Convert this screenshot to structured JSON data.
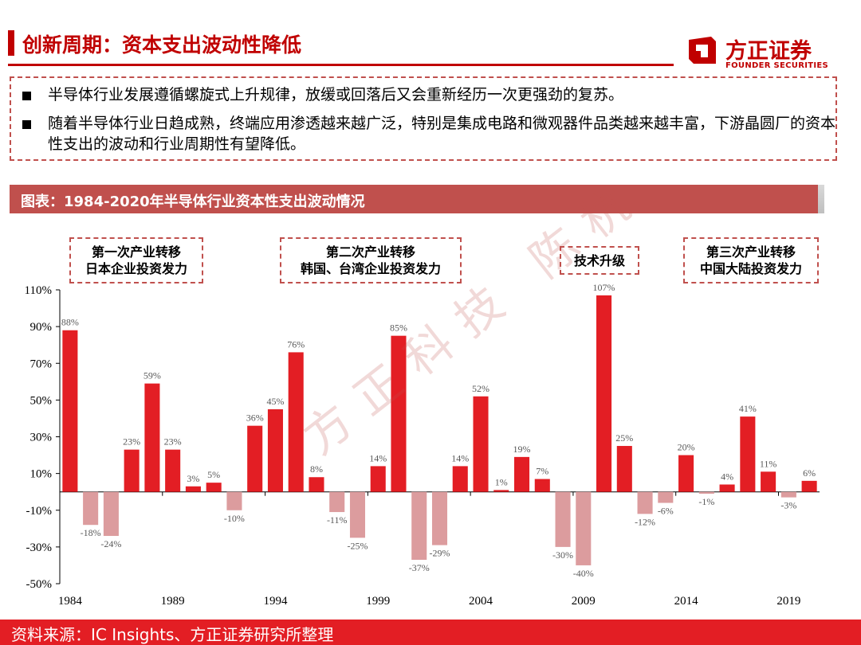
{
  "header": {
    "title": "创新周期：资本支出波动性降低",
    "logo_cn": "方正证券",
    "logo_en": "FOUNDER SECURITIES"
  },
  "summary": {
    "bullets": [
      "半导体行业发展遵循螺旋式上升规律，放缓或回落后又会重新经历一次更强劲的复苏。",
      "随着半导体行业日趋成熟，终端应用渗透越来越广泛，特别是集成电路和微观器件品类越来越丰富，下游晶圆厂的资本性支出的波动和行业周期性有望降低。"
    ]
  },
  "chart_banner": "图表：1984-2020年半导体行业资本性支出波动情况",
  "callouts": [
    {
      "line1": "第一次产业转移",
      "line2": "日本企业投资发力"
    },
    {
      "line1": "第二次产业转移",
      "line2": "韩国、台湾企业投资发力"
    },
    {
      "line1": "技术升级",
      "line2": ""
    },
    {
      "line1": "第三次产业转移",
      "line2": "中国大陆投资发力"
    }
  ],
  "watermark": "方正科技 陈杭",
  "colors": {
    "positive": "#e31e24",
    "negative": "#dc9c9e",
    "accent": "#c00000"
  },
  "chart_data": {
    "type": "bar",
    "x": [
      1984,
      1985,
      1986,
      1987,
      1988,
      1989,
      1990,
      1991,
      1992,
      1993,
      1994,
      1995,
      1996,
      1997,
      1998,
      1999,
      2000,
      2001,
      2002,
      2003,
      2004,
      2005,
      2006,
      2007,
      2008,
      2009,
      2010,
      2011,
      2012,
      2013,
      2014,
      2015,
      2016,
      2017,
      2018,
      2019,
      2020
    ],
    "values": [
      88,
      -18,
      -24,
      23,
      59,
      23,
      3,
      5,
      -10,
      36,
      45,
      76,
      8,
      -11,
      -25,
      14,
      85,
      -37,
      -29,
      14,
      52,
      1,
      19,
      7,
      -30,
      -40,
      107,
      25,
      -12,
      -6,
      20,
      -1,
      4,
      41,
      11,
      -3,
      6
    ],
    "labels": [
      "88%",
      "-18%",
      "-24%",
      "23%",
      "59%",
      "23%",
      "3%",
      "5%",
      "-10%",
      "36%",
      "45%",
      "76%",
      "8%",
      "-11%",
      "-25%",
      "14%",
      "85%",
      "-37%",
      "-29%",
      "14%",
      "52%",
      "1%",
      "19%",
      "7%",
      "-30%",
      "-40%",
      "107%",
      "25%",
      "-12%",
      "-6%",
      "20%",
      "-1%",
      "4%",
      "41%",
      "11%",
      "-3%",
      "6%"
    ],
    "xtick_labels": [
      "1984",
      "1989",
      "1994",
      "1999",
      "2004",
      "2009",
      "2014",
      "2019"
    ],
    "ytick_labels": [
      "110%",
      "90%",
      "70%",
      "50%",
      "30%",
      "10%",
      "-10%",
      "-30%",
      "-50%"
    ],
    "ylim": [
      -50,
      110
    ]
  },
  "footer": {
    "source": "资料来源：IC Insights、方正证券研究所整理"
  }
}
